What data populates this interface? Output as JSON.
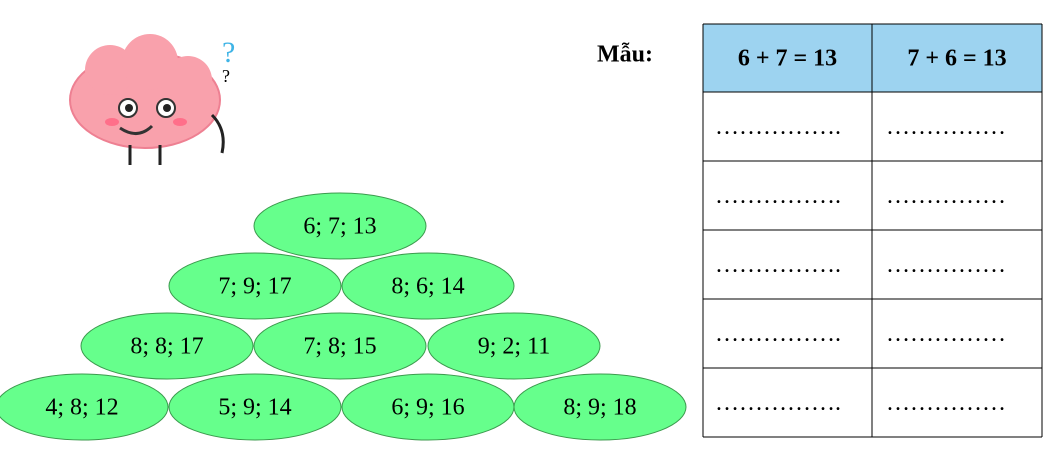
{
  "label": "Mẫu:",
  "table": {
    "header": [
      "6 + 7 = 13",
      "7 + 6 = 13"
    ],
    "rows": [
      [
        "…………….",
        "……………"
      ],
      [
        "…………….",
        "……………"
      ],
      [
        "…………….",
        "……………"
      ],
      [
        "…………….",
        "……………"
      ],
      [
        "…………….",
        "……………"
      ]
    ]
  },
  "ovals": [
    "6; 7; 13",
    "7; 9; 17",
    "8; 6; 14",
    "8; 8; 17",
    "7; 8; 15",
    "9; 2; 11",
    "4; 8; 12",
    "5; 9; 14",
    "6; 9; 16",
    "8; 9; 18"
  ]
}
